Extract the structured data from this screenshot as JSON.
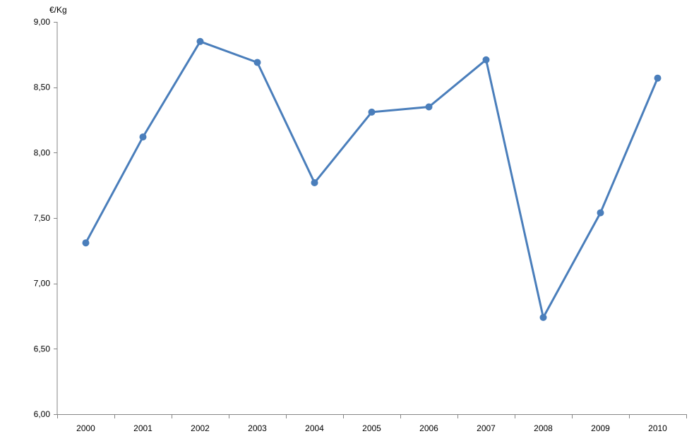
{
  "chart_data": {
    "type": "line",
    "title": "",
    "ylabel": "€/Kg",
    "xlabel": "",
    "categories": [
      "2000",
      "2001",
      "2002",
      "2003",
      "2004",
      "2005",
      "2006",
      "2007",
      "2008",
      "2009",
      "2010"
    ],
    "series": [
      {
        "values": [
          7.31,
          8.12,
          8.85,
          8.69,
          7.77,
          8.31,
          8.35,
          8.71,
          6.74,
          7.54,
          8.57
        ]
      }
    ],
    "ylim": [
      6.0,
      9.0
    ],
    "y_ticks": [
      "6,00",
      "6,50",
      "7,00",
      "7,50",
      "8,00",
      "8,50",
      "9,00"
    ],
    "y_tick_values": [
      6.0,
      6.5,
      7.0,
      7.5,
      8.0,
      8.5,
      9.0
    ],
    "grid": false,
    "legend": "none",
    "colors": {
      "series": "#4a7ebb",
      "axis": "#868686"
    }
  }
}
